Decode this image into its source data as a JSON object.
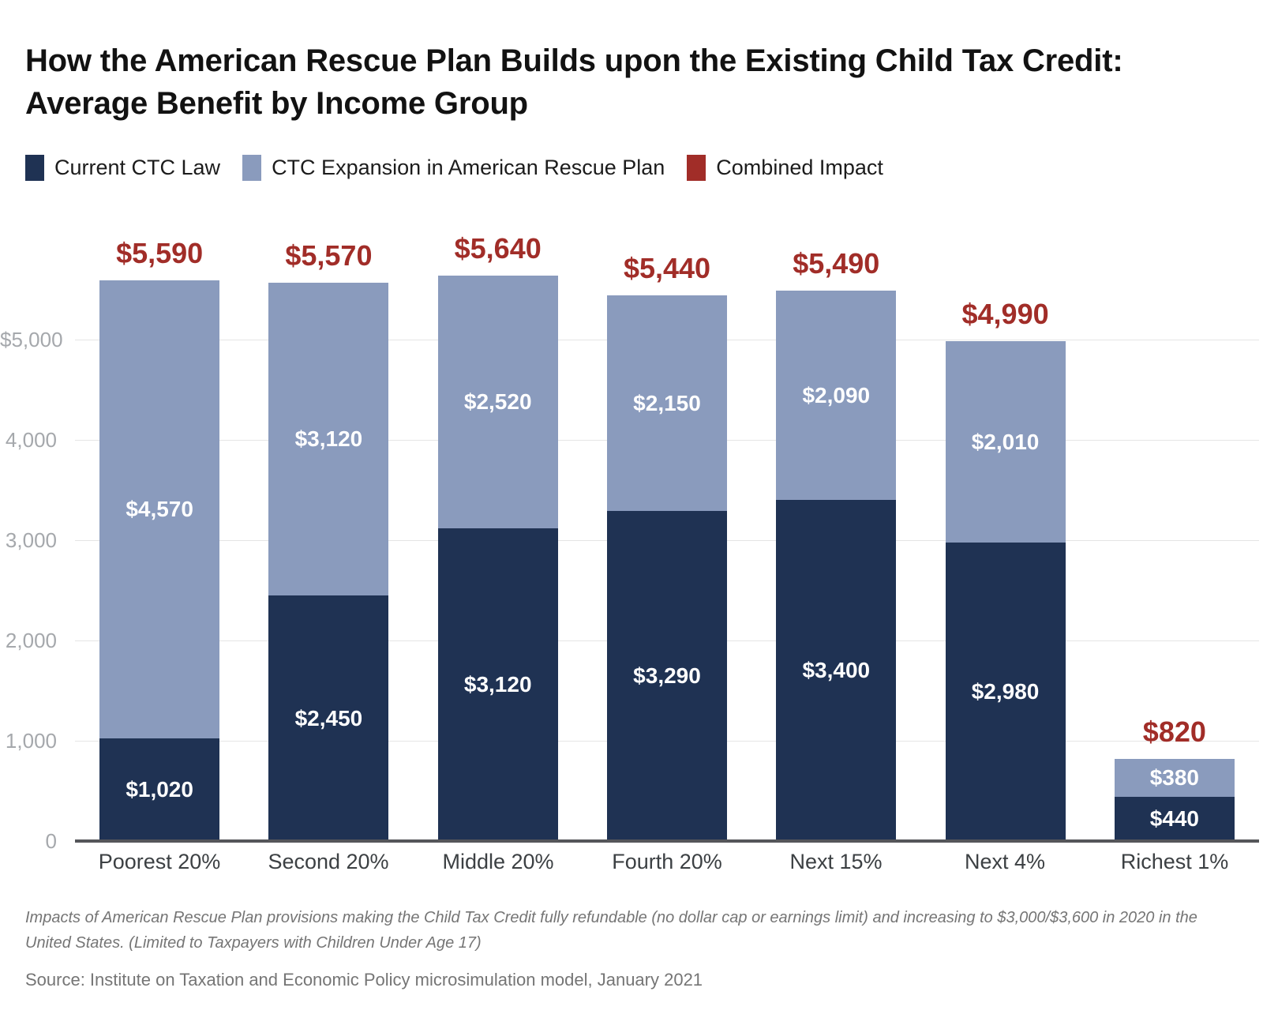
{
  "title": "How the American Rescue Plan Builds upon the Existing Child Tax Credit: Average Benefit by Income Group",
  "legend": [
    {
      "label": "Current CTC Law",
      "color": "#1f3253"
    },
    {
      "label": "CTC Expansion in American Rescue Plan",
      "color": "#8a9bbd"
    },
    {
      "label": "Combined Impact",
      "color": "#a12d28"
    }
  ],
  "chart_data": {
    "type": "bar",
    "stacked": true,
    "title": "How the American Rescue Plan Builds upon the Existing Child Tax Credit: Average Benefit by Income Group",
    "categories": [
      "Poorest 20%",
      "Second 20%",
      "Middle 20%",
      "Fourth 20%",
      "Next 15%",
      "Next 4%",
      "Richest 1%"
    ],
    "series": [
      {
        "name": "Current CTC Law",
        "color": "#1f3253",
        "values": [
          1020,
          2450,
          3120,
          3290,
          3400,
          2980,
          440
        ],
        "value_labels": [
          "$1,020",
          "$2,450",
          "$3,120",
          "$3,290",
          "$3,400",
          "$2,980",
          "$440"
        ]
      },
      {
        "name": "CTC Expansion in American Rescue Plan",
        "color": "#8a9bbd",
        "values": [
          4570,
          3120,
          2520,
          2150,
          2090,
          2010,
          380
        ],
        "value_labels": [
          "$4,570",
          "$3,120",
          "$2,520",
          "$2,150",
          "$2,090",
          "$2,010",
          "$380"
        ]
      }
    ],
    "totals": {
      "name": "Combined Impact",
      "color": "#a12d28",
      "values": [
        5590,
        5570,
        5640,
        5440,
        5490,
        4990,
        820
      ],
      "value_labels": [
        "$5,590",
        "$5,570",
        "$5,640",
        "$5,440",
        "$5,490",
        "$4,990",
        "$820"
      ]
    },
    "yticks": [
      {
        "value": 0,
        "label": "0"
      },
      {
        "value": 1000,
        "label": "1,000"
      },
      {
        "value": 2000,
        "label": "2,000"
      },
      {
        "value": 3000,
        "label": "3,000"
      },
      {
        "value": 4000,
        "label": "4,000"
      },
      {
        "value": 5000,
        "label": "$5,000"
      }
    ],
    "ylim": [
      0,
      6000
    ],
    "grid": true,
    "legend_position": "top-left"
  },
  "note": "Impacts of American Rescue Plan provisions making the Child Tax Credit fully refundable (no dollar cap or earnings limit) and increasing to $3,000/$3,600 in 2020 in the United States. (Limited to Taxpayers with Children Under Age 17)",
  "source": "Source: Institute on Taxation and Economic Policy microsimulation model, January 2021"
}
